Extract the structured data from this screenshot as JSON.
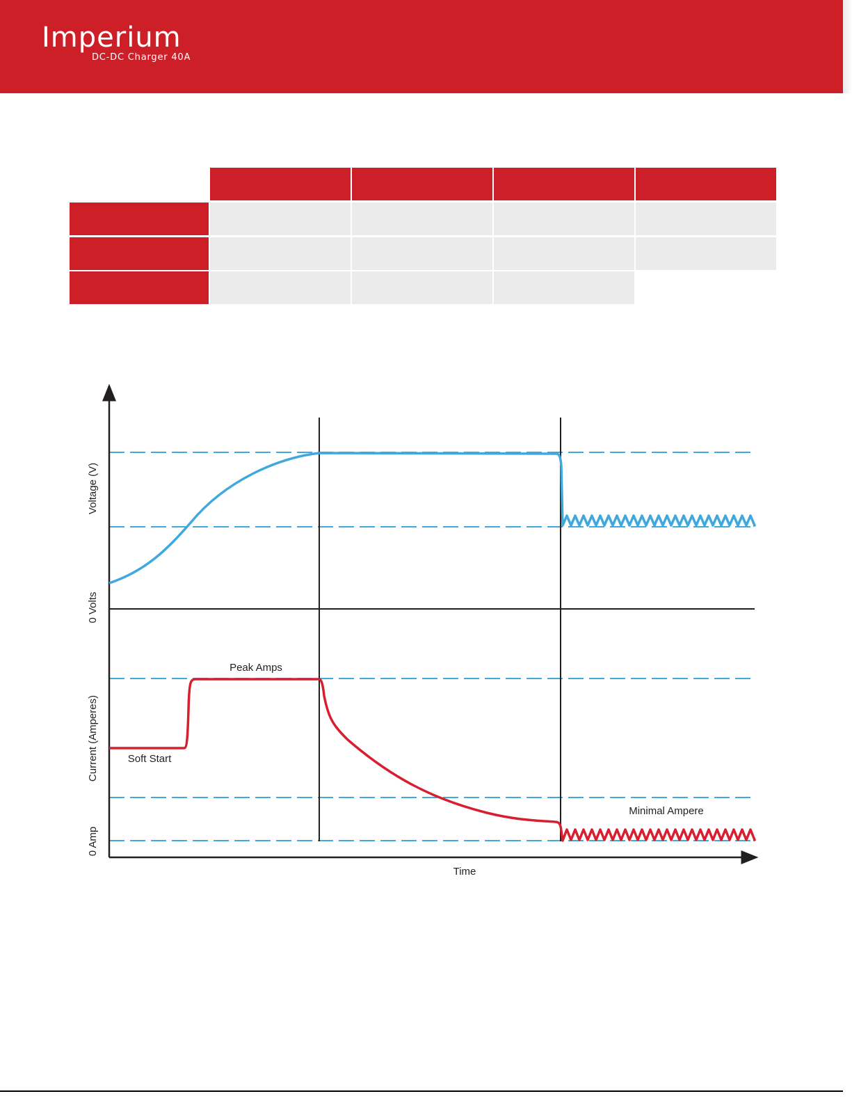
{
  "brand": {
    "name": "Imperium",
    "product": "DC-DC Charger 40A",
    "color_primary": "#cd1f28",
    "logo_icon": "plus-cross-icon"
  },
  "spec_table": {
    "header_color": "#cd1f28",
    "cell_color": "#ebebeb",
    "columns": [
      "",
      "",
      "",
      ""
    ],
    "rows": [
      {
        "label": "",
        "cells": [
          "",
          "",
          "",
          ""
        ]
      },
      {
        "label": "",
        "cells": [
          "",
          "",
          "",
          ""
        ]
      },
      {
        "label": "",
        "cells": [
          "",
          "",
          ""
        ]
      }
    ]
  },
  "chart_data": {
    "type": "line",
    "xlabel": "Time",
    "y_labels_upper": [
      "Voltage (V)",
      "0 Volts"
    ],
    "y_labels_lower": [
      "Current (Amperes)",
      "0 Amp"
    ],
    "annotations": [
      "Peak Amps",
      "Soft Start",
      "Minimal Ampere"
    ],
    "series": [
      {
        "name": "Voltage",
        "color": "#3fa9dd"
      },
      {
        "name": "Current",
        "color": "#d71f30"
      }
    ],
    "reference_line_color": "#3fa9dd",
    "grid": false
  }
}
